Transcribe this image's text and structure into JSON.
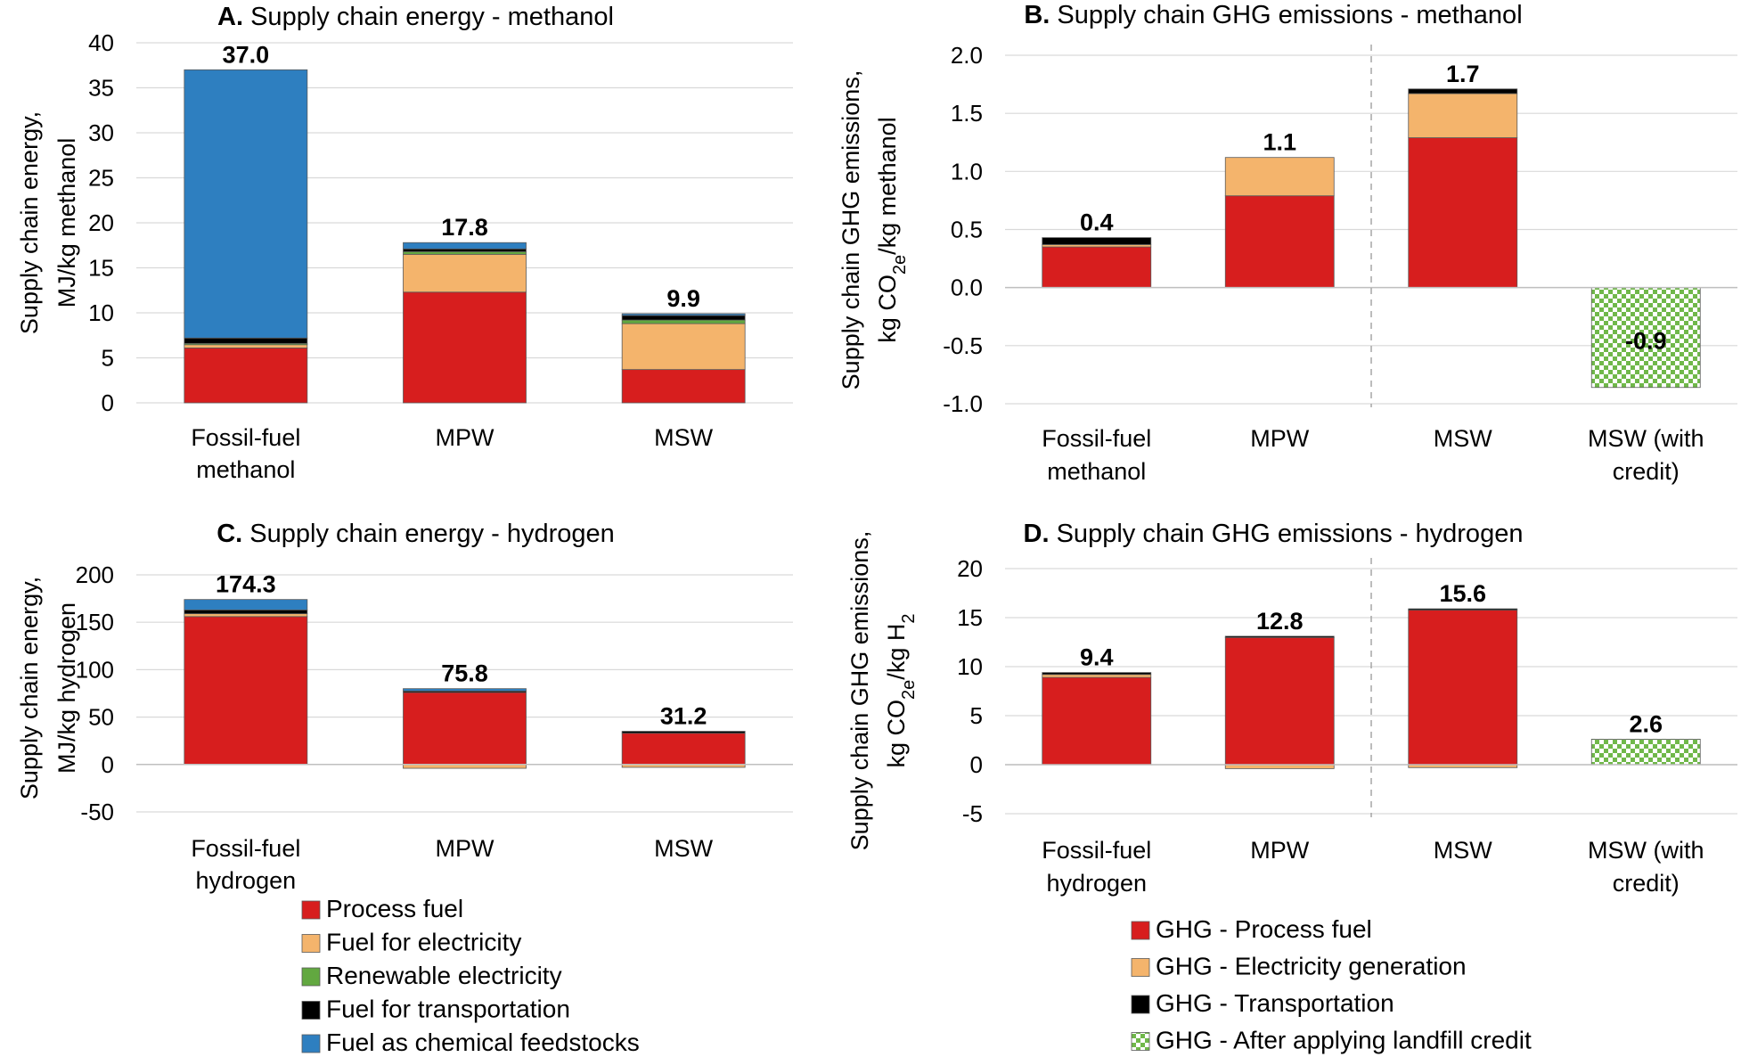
{
  "colors": {
    "process_fuel": "#d71e1e",
    "fuel_for_electricity": "#f4b46c",
    "renewable_electricity": "#62a840",
    "fuel_for_transportation": "#000000",
    "fuel_as_chemical_feedstocks": "#2e7fc0",
    "landfill_credit": "#70b84a"
  },
  "chart_data": [
    {
      "id": "A",
      "type": "bar",
      "stacked": true,
      "panel_letter": "A.",
      "title": "Supply chain energy - methanol",
      "ylabel": [
        "Supply chain energy,",
        "MJ/kg methanol"
      ],
      "ylim": [
        0,
        40
      ],
      "yticks": [
        0,
        5,
        10,
        15,
        20,
        25,
        30,
        35,
        40
      ],
      "categories": [
        [
          "Fossil-fuel",
          "methanol"
        ],
        [
          "MPW"
        ],
        [
          "MSW"
        ]
      ],
      "series": [
        {
          "name": "Process fuel",
          "color_key": "process_fuel",
          "values": [
            6.1,
            12.3,
            3.7
          ]
        },
        {
          "name": "Fuel for electricity",
          "color_key": "fuel_for_electricity",
          "values": [
            0.4,
            4.2,
            5.1
          ]
        },
        {
          "name": "Renewable electricity",
          "color_key": "renewable_electricity",
          "values": [
            0.1,
            0.3,
            0.4
          ]
        },
        {
          "name": "Fuel for transportation",
          "color_key": "fuel_for_transportation",
          "values": [
            0.6,
            0.3,
            0.5
          ]
        },
        {
          "name": "Fuel as chemical feedstocks",
          "color_key": "fuel_as_chemical_feedstocks",
          "values": [
            29.8,
            0.7,
            0.2
          ]
        }
      ],
      "totals": [
        37.0,
        17.8,
        9.9
      ],
      "total_labels": [
        "37.0",
        "17.8",
        "9.9"
      ],
      "legend": "below panel C"
    },
    {
      "id": "B",
      "type": "bar",
      "stacked": true,
      "panel_letter": "B.",
      "title": "Supply chain GHG emissions - methanol",
      "ylabel": [
        "Supply chain GHG emissions,",
        "kg CO2e/kg methanol"
      ],
      "ylim": [
        -1.0,
        2.0
      ],
      "yticks": [
        -1.0,
        -0.5,
        0.0,
        0.5,
        1.0,
        1.5,
        2.0
      ],
      "tick_labels": [
        "-1.0",
        "-0.5",
        "0.0",
        "0.5",
        "1.0",
        "1.5",
        "2.0"
      ],
      "categories": [
        [
          "Fossil-fuel",
          "methanol"
        ],
        [
          "MPW"
        ],
        [
          "MSW"
        ],
        [
          "MSW (with",
          "credit)"
        ]
      ],
      "series": [
        {
          "name": "GHG - Process fuel",
          "color_key": "process_fuel",
          "values": [
            0.35,
            0.79,
            1.29,
            0
          ]
        },
        {
          "name": "GHG - Electricity generation",
          "color_key": "fuel_for_electricity",
          "values": [
            0.02,
            0.33,
            0.38,
            0
          ]
        },
        {
          "name": "GHG - Transportation",
          "color_key": "fuel_for_transportation",
          "values": [
            0.06,
            0.0,
            0.04,
            0
          ]
        },
        {
          "name": "GHG - After applying landfill credit",
          "color_key": "landfill_credit",
          "pattern": true,
          "values": [
            0,
            0,
            0,
            -0.86
          ]
        }
      ],
      "totals": [
        0.4,
        1.1,
        1.7,
        -0.9
      ],
      "total_labels": [
        "0.4",
        "1.1",
        "1.7",
        "-0.9"
      ],
      "divider_after_category": 2,
      "legend": "below panel D"
    },
    {
      "id": "C",
      "type": "bar",
      "stacked": true,
      "panel_letter": "C.",
      "title": "Supply chain energy - hydrogen",
      "ylabel": [
        "Supply chain energy,",
        "MJ/kg hydrogen"
      ],
      "ylim": [
        -50,
        200
      ],
      "yticks": [
        -50,
        0,
        50,
        100,
        150,
        200
      ],
      "categories": [
        [
          "Fossil-fuel",
          "hydrogen"
        ],
        [
          "MPW"
        ],
        [
          "MSW"
        ]
      ],
      "series": [
        {
          "name": "Process fuel",
          "color_key": "process_fuel",
          "values": [
            156,
            76,
            33
          ]
        },
        {
          "name": "Fuel for electricity",
          "color_key": "fuel_for_electricity",
          "values": [
            3,
            -4,
            -3
          ]
        },
        {
          "name": "Renewable electricity",
          "color_key": "renewable_electricity",
          "values": [
            0,
            0,
            0
          ]
        },
        {
          "name": "Fuel for transportation",
          "color_key": "fuel_for_transportation",
          "values": [
            4,
            1.5,
            2
          ]
        },
        {
          "name": "Fuel as chemical feedstocks",
          "color_key": "fuel_as_chemical_feedstocks",
          "values": [
            11,
            2.5,
            0
          ]
        }
      ],
      "totals": [
        174.3,
        75.8,
        31.2
      ],
      "total_labels": [
        "174.3",
        "75.8",
        "31.2"
      ],
      "legend": "below panel C"
    },
    {
      "id": "D",
      "type": "bar",
      "stacked": true,
      "panel_letter": "D.",
      "title": "Supply chain GHG emissions - hydrogen",
      "ylabel": [
        "Supply chain GHG emissions,",
        "kg CO2e/kg H2"
      ],
      "ylim": [
        -5,
        20
      ],
      "yticks": [
        -5,
        0,
        5,
        10,
        15,
        20
      ],
      "categories": [
        [
          "Fossil-fuel",
          "hydrogen"
        ],
        [
          "MPW"
        ],
        [
          "MSW"
        ],
        [
          "MSW (with",
          "credit)"
        ]
      ],
      "series": [
        {
          "name": "GHG - Process fuel",
          "color_key": "process_fuel",
          "values": [
            8.9,
            13.0,
            15.8,
            0
          ]
        },
        {
          "name": "GHG - Electricity generation",
          "color_key": "fuel_for_electricity",
          "values": [
            0.3,
            -0.4,
            -0.3,
            0
          ]
        },
        {
          "name": "GHG - Transportation",
          "color_key": "fuel_for_transportation",
          "values": [
            0.2,
            0.1,
            0.1,
            0
          ]
        },
        {
          "name": "GHG - After applying landfill credit",
          "color_key": "landfill_credit",
          "pattern": true,
          "values": [
            0,
            0,
            0,
            2.6
          ]
        }
      ],
      "totals": [
        9.4,
        12.8,
        15.6,
        2.6
      ],
      "total_labels": [
        "9.4",
        "12.8",
        "15.6",
        "2.6"
      ],
      "divider_after_category": 2,
      "legend": "below panel D"
    }
  ],
  "legends": {
    "energy": [
      "Process fuel",
      "Fuel for electricity",
      "Renewable electricity",
      "Fuel for transportation",
      "Fuel as chemical feedstocks"
    ],
    "ghg": [
      "GHG - Process fuel",
      "GHG - Electricity generation",
      "GHG - Transportation",
      "GHG - After applying landfill credit"
    ]
  }
}
